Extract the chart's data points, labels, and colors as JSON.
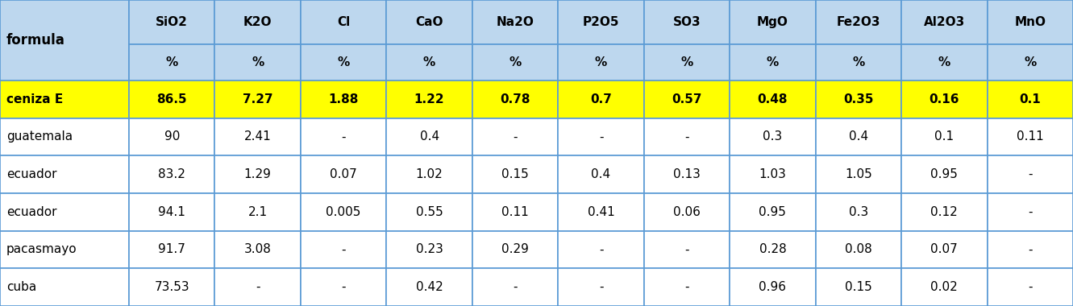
{
  "col_headers_row1": [
    "SiO2",
    "K2O",
    "Cl",
    "CaO",
    "Na2O",
    "P2O5",
    "SO3",
    "MgO",
    "Fe2O3",
    "Al2O3",
    "MnO"
  ],
  "col_headers_row2": [
    "%",
    "%",
    "%",
    "%",
    "%",
    "%",
    "%",
    "%",
    "%",
    "%",
    "%"
  ],
  "row_label_header": "formula",
  "rows": [
    {
      "label": "ceniza E",
      "values": [
        "86.5",
        "7.27",
        "1.88",
        "1.22",
        "0.78",
        "0.7",
        "0.57",
        "0.48",
        "0.35",
        "0.16",
        "0.1"
      ],
      "highlight": true
    },
    {
      "label": "guatemala",
      "values": [
        "90",
        "2.41",
        "-",
        "0.4",
        "-",
        "-",
        "-",
        "0.3",
        "0.4",
        "0.1",
        "0.11"
      ],
      "highlight": false
    },
    {
      "label": "ecuador",
      "values": [
        "83.2",
        "1.29",
        "0.07",
        "1.02",
        "0.15",
        "0.4",
        "0.13",
        "1.03",
        "1.05",
        "0.95",
        "-"
      ],
      "highlight": false
    },
    {
      "label": "ecuador",
      "values": [
        "94.1",
        "2.1",
        "0.005",
        "0.55",
        "0.11",
        "0.41",
        "0.06",
        "0.95",
        "0.3",
        "0.12",
        "-"
      ],
      "highlight": false
    },
    {
      "label": "pacasmayo",
      "values": [
        "91.7",
        "3.08",
        "-",
        "0.23",
        "0.29",
        "-",
        "-",
        "0.28",
        "0.08",
        "0.07",
        "-"
      ],
      "highlight": false
    },
    {
      "label": "cuba",
      "values": [
        "73.53",
        "-",
        "-",
        "0.42",
        "-",
        "-",
        "-",
        "0.96",
        "0.15",
        "0.02",
        "-"
      ],
      "highlight": false
    }
  ],
  "header_bg_color": "#BDD7EE",
  "highlight_bg_color": "#FFFF00",
  "white_bg_color": "#FFFFFF",
  "border_color": "#5B9BD5",
  "dark_border_color": "#2E75B6",
  "n_data_cols": 11,
  "fig_width": 13.31,
  "fig_height": 3.8,
  "dpi": 100
}
